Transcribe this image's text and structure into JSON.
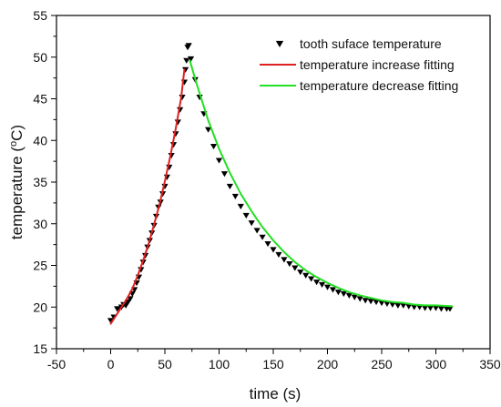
{
  "chart_data": {
    "type": "line",
    "xlabel": "time (s)",
    "ylabel_prefix": "temperature (",
    "ylabel_unit_sup": "o",
    "ylabel_unit": "C)",
    "xlim": [
      -50,
      350
    ],
    "ylim": [
      15,
      55
    ],
    "x_ticks": [
      -50,
      0,
      50,
      100,
      150,
      200,
      250,
      300,
      350
    ],
    "y_ticks": [
      15,
      20,
      25,
      30,
      35,
      40,
      45,
      50,
      55
    ],
    "grid": false,
    "legend_position": "top-right",
    "series": [
      {
        "name": "tooth suface temperature",
        "kind": "scatter",
        "marker": "triangle-down",
        "color": "#000000",
        "x": [
          0,
          3,
          6,
          8,
          10,
          12,
          14,
          16,
          18,
          20,
          22,
          24,
          26,
          28,
          30,
          32,
          34,
          36,
          38,
          40,
          42,
          44,
          46,
          48,
          50,
          52,
          54,
          56,
          58,
          60,
          62,
          64,
          66,
          68,
          69,
          70,
          71,
          72,
          74,
          78,
          82,
          86,
          90,
          95,
          100,
          105,
          110,
          115,
          120,
          125,
          130,
          135,
          140,
          145,
          150,
          155,
          160,
          165,
          170,
          175,
          180,
          185,
          190,
          195,
          200,
          205,
          210,
          215,
          220,
          225,
          230,
          235,
          240,
          245,
          250,
          255,
          260,
          265,
          270,
          275,
          280,
          285,
          290,
          295,
          300,
          305,
          310,
          313
        ],
        "y": [
          18.4,
          18.8,
          19.8,
          19.8,
          20.0,
          20.3,
          20.2,
          20.6,
          21.0,
          21.6,
          22.1,
          22.9,
          23.6,
          24.5,
          25.4,
          26.2,
          27.2,
          28.0,
          28.9,
          29.8,
          30.9,
          32.0,
          32.6,
          33.6,
          34.5,
          35.6,
          36.8,
          38.2,
          39.5,
          40.8,
          42.2,
          43.7,
          45.2,
          47.0,
          48.5,
          49.6,
          51.2,
          51.4,
          49.8,
          47.3,
          45.2,
          43.2,
          41.3,
          39.3,
          37.6,
          36.0,
          34.5,
          33.3,
          32.1,
          31.0,
          30.1,
          29.2,
          28.4,
          27.6,
          26.9,
          26.3,
          25.7,
          25.2,
          24.7,
          24.2,
          23.8,
          23.4,
          23.0,
          22.7,
          22.4,
          22.1,
          21.8,
          21.6,
          21.4,
          21.2,
          21.0,
          20.8,
          20.7,
          20.6,
          20.5,
          20.4,
          20.3,
          20.2,
          20.2,
          20.1,
          20.0,
          20.0,
          19.9,
          19.9,
          19.9,
          19.8,
          19.8,
          19.8
        ]
      },
      {
        "name": "temperature increase fitting",
        "kind": "line",
        "color": "#e02020",
        "x": [
          0,
          5,
          10,
          15,
          20,
          25,
          30,
          35,
          40,
          45,
          50,
          55,
          60,
          65,
          68
        ],
        "y": [
          18.0,
          19.0,
          20.0,
          21.0,
          22.2,
          23.8,
          25.6,
          27.6,
          29.9,
          32.3,
          35.1,
          38.1,
          41.4,
          45.1,
          48.5
        ]
      },
      {
        "name": "temperature decrease fitting",
        "kind": "line",
        "color": "#22e022",
        "x": [
          73,
          80,
          90,
          100,
          110,
          120,
          130,
          140,
          150,
          160,
          170,
          180,
          190,
          200,
          210,
          220,
          230,
          240,
          250,
          260,
          270,
          280,
          290,
          300,
          315
        ],
        "y": [
          49.6,
          46.5,
          42.4,
          39.0,
          36.1,
          33.6,
          31.5,
          29.6,
          28.0,
          26.6,
          25.4,
          24.4,
          23.6,
          22.9,
          22.3,
          21.8,
          21.4,
          21.1,
          20.8,
          20.6,
          20.5,
          20.3,
          20.2,
          20.2,
          20.1
        ]
      }
    ]
  }
}
